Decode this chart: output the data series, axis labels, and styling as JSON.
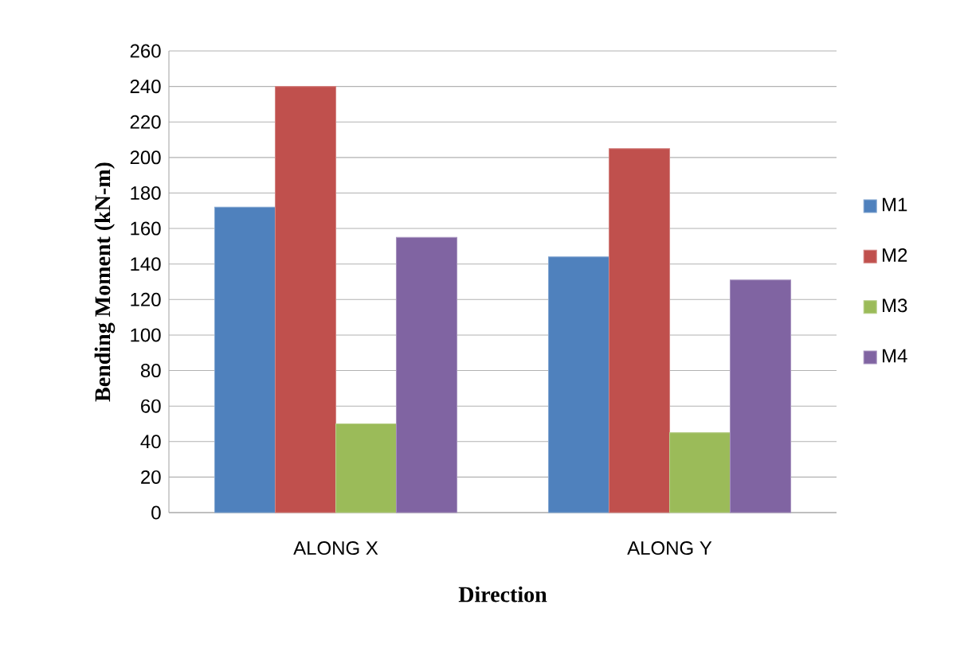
{
  "chart_data": {
    "type": "bar",
    "xlabel": "Direction",
    "ylabel": "Bending Moment (kN-m)",
    "categories": [
      "ALONG X",
      "ALONG Y"
    ],
    "series": [
      {
        "name": "M1",
        "color": "#4f81bd",
        "values": [
          172,
          144
        ]
      },
      {
        "name": "M2",
        "color": "#c0504d",
        "values": [
          240,
          205
        ]
      },
      {
        "name": "M3",
        "color": "#9bbb59",
        "values": [
          50,
          45
        ]
      },
      {
        "name": "M4",
        "color": "#8064a2",
        "values": [
          155,
          131
        ]
      }
    ],
    "ylim": [
      0,
      260
    ],
    "yticks": [
      0,
      20,
      40,
      60,
      80,
      100,
      120,
      140,
      160,
      180,
      200,
      220,
      240,
      260
    ],
    "grid": "y",
    "legend": "right"
  }
}
